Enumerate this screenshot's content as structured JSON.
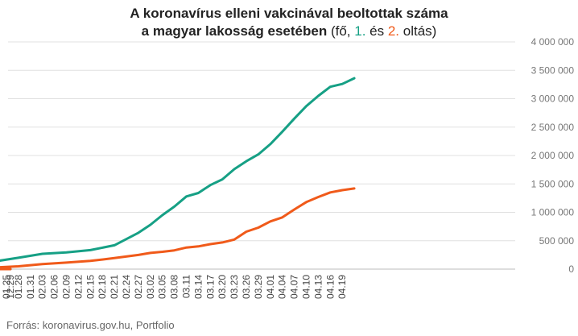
{
  "title": {
    "line1": "A koronavírus elleni vakcinával beoltottak száma",
    "line2_bold": "a magyar lakosság esetében",
    "line2_open": " (fő, ",
    "dose1": "1.",
    "and": " és ",
    "dose2": "2.",
    "line2_close": " oltás)"
  },
  "source": "Forrás: koronavirus.gov.hu, Portfolio",
  "colors": {
    "dose1": "#16a085",
    "dose2": "#f05a1a",
    "grid": "#e0e0e0"
  },
  "chart_data": {
    "type": "line",
    "title": "A koronavírus elleni vakcinával beoltottak száma a magyar lakosság esetében (fő, 1. és 2. oltás)",
    "ylim": [
      0,
      4000000
    ],
    "yticks": [
      0,
      500000,
      1000000,
      1500000,
      2000000,
      2500000,
      3000000,
      3500000,
      4000000
    ],
    "ytick_labels": [
      "0",
      "500 000",
      "1 000 000",
      "1 500 000",
      "2 000 000",
      "2 500 000",
      "3 000 000",
      "3 500 000",
      "4 000 000"
    ],
    "grid": true,
    "x_tick_labels": [
      "12.29",
      "01.01",
      "01.04",
      "01.07",
      "01.10",
      "01.13",
      "01.16",
      "01.19",
      "01.22",
      "01.25",
      "01.28",
      "01.31",
      "02.03",
      "02.06",
      "02.09",
      "02.12",
      "02.15",
      "02.18",
      "02.21",
      "02.24",
      "02.27",
      "03.02",
      "03.05",
      "03.08",
      "03.11",
      "03.14",
      "03.17",
      "03.20",
      "03.23",
      "03.26",
      "03.29",
      "04.01",
      "04.04",
      "04.07",
      "04.10",
      "04.13",
      "04.16",
      "04.19"
    ],
    "series": [
      {
        "name": "1.",
        "color": "#16a085",
        "x": [
          "12.29",
          "01.04",
          "01.10",
          "01.16",
          "01.22",
          "01.28",
          "02.03",
          "02.09",
          "02.15",
          "02.21",
          "02.27",
          "03.02",
          "03.05",
          "03.08",
          "03.11",
          "03.14",
          "03.17",
          "03.20",
          "03.23",
          "03.26",
          "03.29",
          "04.01",
          "04.04",
          "04.07",
          "04.10",
          "04.13",
          "04.16",
          "04.19",
          "04.22"
        ],
        "values": [
          2000,
          20000,
          60000,
          110000,
          135000,
          200000,
          270000,
          295000,
          335000,
          420000,
          640000,
          780000,
          950000,
          1100000,
          1280000,
          1340000,
          1480000,
          1580000,
          1760000,
          1900000,
          2020000,
          2200000,
          2420000,
          2650000,
          2870000,
          3050000,
          3210000,
          3260000,
          3360000
        ]
      },
      {
        "name": "2.",
        "color": "#f05a1a",
        "x": [
          "12.29",
          "01.04",
          "01.10",
          "01.16",
          "01.22",
          "01.28",
          "02.03",
          "02.09",
          "02.15",
          "02.21",
          "02.27",
          "03.02",
          "03.05",
          "03.08",
          "03.11",
          "03.14",
          "03.17",
          "03.20",
          "03.23",
          "03.26",
          "03.29",
          "04.01",
          "04.04",
          "04.07",
          "04.10",
          "04.13",
          "04.16",
          "04.19",
          "04.22"
        ],
        "values": [
          0,
          0,
          5000,
          15000,
          30000,
          50000,
          90000,
          115000,
          145000,
          195000,
          250000,
          285000,
          305000,
          330000,
          380000,
          400000,
          440000,
          470000,
          520000,
          660000,
          730000,
          840000,
          910000,
          1050000,
          1180000,
          1270000,
          1350000,
          1390000,
          1420000
        ]
      }
    ]
  }
}
